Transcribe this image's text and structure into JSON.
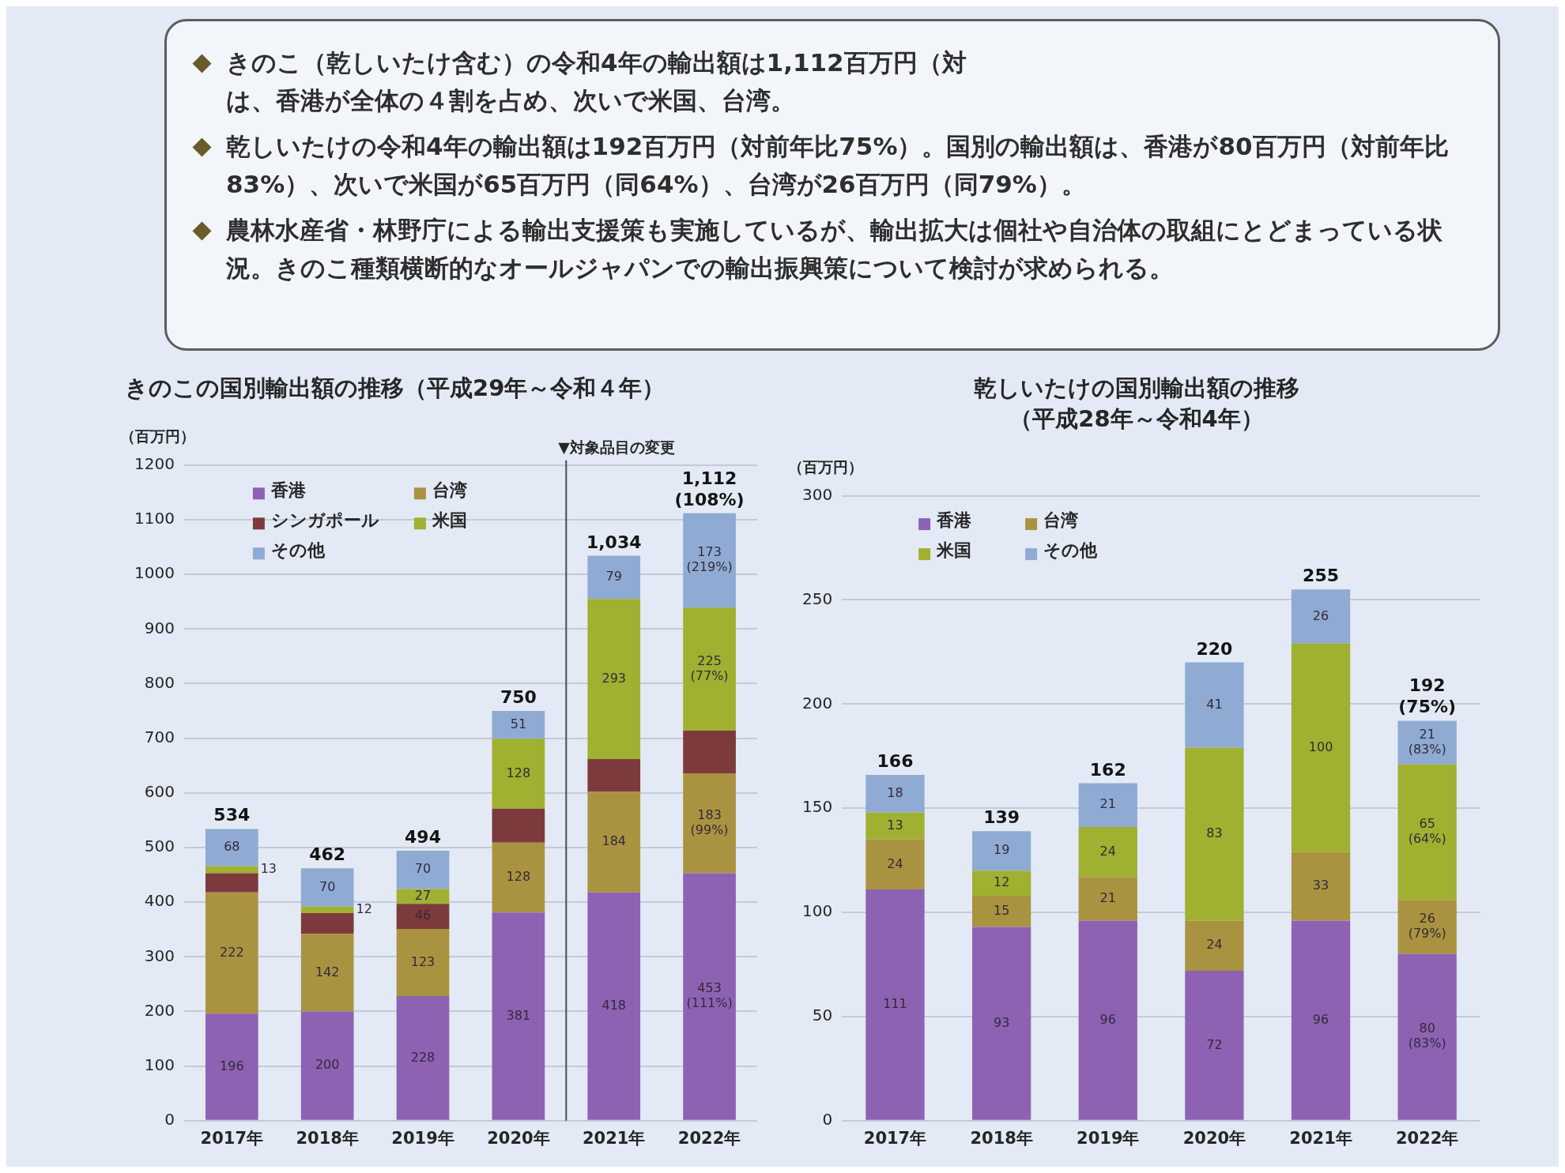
{
  "chart_data": [
    {
      "type": "other",
      "annotations": [
        "きのこ（乾しいたけ含む）の令和4年の輸出額は1,112百万円（対",
        "は、香港が全体の４割を占め、次いで米国、台湾。",
        "乾しいたけの令和4年の輸出額は192百万円（対前年比75%）。国別の輸出額は、香港が80百万円（対前年比83%）、次いで米国が65百万円（同64%）、台湾が26百万円（同79%）。",
        "農林水産省・林野庁による輸出支援策も実施しているが、輸出拡大は個社や自治体の取組にとどまっている状況。きのこ種類横断的なオールジャパンでの輸出振興策について検討が求められる。"
      ]
    },
    {
      "type": "bar",
      "title": "きのこの国別輸出額の推移（平成29年～令和４年）",
      "ylabel": "（百万円）",
      "categories": [
        "2017年",
        "2018年",
        "2019年",
        "2020年",
        "2021年",
        "2022年"
      ],
      "stacked": true,
      "series": [
        {
          "name": "香港",
          "color": "#8e62b3",
          "values": [
            196,
            200,
            228,
            381,
            418,
            453
          ],
          "value_labels": [
            "196",
            "200",
            "228",
            "381",
            "418",
            "453 (111%)"
          ]
        },
        {
          "name": "台湾",
          "color": "#aa9340",
          "values": [
            222,
            142,
            123,
            128,
            184,
            183
          ],
          "value_labels": [
            "222",
            "142",
            "123",
            "128",
            "184",
            "183 (99%)"
          ]
        },
        {
          "name": "シンガポール",
          "color": "#7d3a3c",
          "values": [
            35,
            38,
            46,
            62,
            60,
            78
          ],
          "value_labels": [
            null,
            null,
            "46",
            null,
            null,
            null
          ]
        },
        {
          "name": "米国",
          "color": "#a0b030",
          "values": [
            13,
            12,
            27,
            128,
            293,
            225
          ],
          "value_labels": [
            "13",
            "12",
            "27",
            "128",
            "293",
            "225 (77%)"
          ]
        },
        {
          "name": "その他",
          "color": "#8fabd3",
          "values": [
            68,
            70,
            70,
            51,
            79,
            173
          ],
          "value_labels": [
            "68",
            "70",
            "70",
            "51",
            "79",
            "173 (219%)"
          ]
        }
      ],
      "totals": [
        "534",
        "462",
        "494",
        "750",
        "1,034",
        "1,112 (108%)"
      ],
      "ylim": [
        0,
        1200
      ],
      "yticks": [
        0,
        100,
        200,
        300,
        400,
        500,
        600,
        700,
        800,
        900,
        1000,
        1100,
        1200
      ],
      "grid": "y",
      "legend": "top left",
      "ref_lines": [
        {
          "axis": "x",
          "value": "2021年",
          "label": "▼対象品目の変更"
        }
      ]
    },
    {
      "type": "bar",
      "title": "乾しいたけの国別輸出額の推移",
      "subtitle": "（平成28年～令和4年）",
      "ylabel": "（百万円）",
      "categories": [
        "2017年",
        "2018年",
        "2019年",
        "2020年",
        "2021年",
        "2022年"
      ],
      "stacked": true,
      "series": [
        {
          "name": "香港",
          "color": "#8e62b3",
          "values": [
            111,
            93,
            96,
            72,
            96,
            80
          ],
          "value_labels": [
            "111",
            "93",
            "96",
            "72",
            "96",
            "80 (83%)"
          ]
        },
        {
          "name": "台湾",
          "color": "#aa9340",
          "values": [
            24,
            15,
            21,
            24,
            33,
            26
          ],
          "value_labels": [
            "24",
            "15",
            "21",
            "24",
            "33",
            "26 (79%)"
          ]
        },
        {
          "name": "米国",
          "color": "#a0b030",
          "values": [
            13,
            12,
            24,
            83,
            100,
            65
          ],
          "value_labels": [
            "13",
            "12",
            "24",
            "83",
            "100",
            "65 (64%)"
          ]
        },
        {
          "name": "その他",
          "color": "#8fabd3",
          "values": [
            18,
            19,
            21,
            41,
            26,
            21
          ],
          "value_labels": [
            "18",
            "19",
            "21",
            "41",
            "26",
            "21 (83%)"
          ]
        }
      ],
      "totals": [
        "166",
        "139",
        "162",
        "220",
        "255",
        "192 (75%)"
      ],
      "ylim": [
        0,
        300
      ],
      "yticks": [
        0,
        50,
        100,
        150,
        200,
        250,
        300
      ],
      "grid": "y",
      "legend": "top left"
    }
  ]
}
